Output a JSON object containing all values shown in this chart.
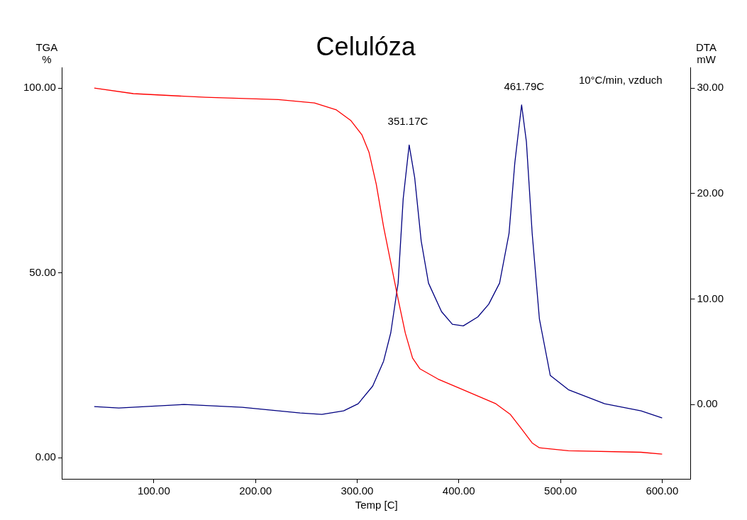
{
  "chart_data": {
    "type": "line",
    "title": "Celulóza",
    "xlabel": "Temp [C]",
    "ylabel": "TGA\n%",
    "y2label": "DTA\nmW",
    "xlim": [
      10,
      628
    ],
    "xticks": [
      {
        "value": 100,
        "label": "100.00"
      },
      {
        "value": 200,
        "label": "200.00"
      },
      {
        "value": 300,
        "label": "300.00"
      },
      {
        "value": 400,
        "label": "400.00"
      },
      {
        "value": 500,
        "label": "500.00"
      },
      {
        "value": 600,
        "label": "600.00"
      }
    ],
    "ylim": [
      -5.7,
      105.6
    ],
    "yticks": [
      {
        "value": 0,
        "label": "0.00"
      },
      {
        "value": 50,
        "label": "50.00"
      },
      {
        "value": 100,
        "label": "100.00"
      }
    ],
    "y2lim": [
      -7.05,
      31.95
    ],
    "y2ticks": [
      {
        "value": 0,
        "label": "0.00"
      },
      {
        "value": 10,
        "label": "10.00"
      },
      {
        "value": 20,
        "label": "20.00"
      },
      {
        "value": 30,
        "label": "30.00"
      }
    ],
    "grid": false,
    "legend": false,
    "marker": "none",
    "line_style": "solid",
    "series": [
      {
        "color": "#ff0000",
        "x": [
          41.4,
          79.9,
          151,
          222.5,
          258,
          279.6,
          293.9,
          304.6,
          311.7,
          318.8,
          326,
          333,
          340,
          347.4,
          354.5,
          361.6,
          379.5,
          400.9,
          436.5,
          450.8,
          461.5,
          472.2,
          479.3,
          507.8,
          579.2,
          600
        ],
        "values": [
          100,
          98.5,
          97.5,
          96.9,
          96,
          94.1,
          91.2,
          87.4,
          82.6,
          74,
          62.5,
          52.9,
          43.3,
          33.7,
          27,
          24.1,
          21.3,
          18.8,
          14.6,
          11.7,
          7.9,
          4,
          2.7,
          1.9,
          1.5,
          1
        ]
      },
      {
        "color": "#000080",
        "axis": "y2",
        "x": [
          41.4,
          65.6,
          129.8,
          186.9,
          243.9,
          265.3,
          286.7,
          301,
          315.3,
          326,
          333.1,
          340.3,
          345.3,
          351.17,
          356.6,
          363,
          370.2,
          383,
          393.7,
          404.4,
          418.7,
          429.4,
          440.1,
          449.4,
          455.1,
          461.79,
          466.5,
          472.2,
          479.3,
          490,
          507.8,
          543.5,
          579.2,
          600
        ],
        "values": [
          -0.2,
          -0.34,
          0,
          -0.27,
          -0.8,
          -0.94,
          -0.6,
          0.07,
          1.74,
          4.1,
          6.8,
          11.5,
          19.5,
          24.6,
          21.5,
          15.5,
          11.5,
          8.8,
          7.6,
          7.45,
          8.3,
          9.5,
          11.5,
          16.2,
          22.9,
          28.4,
          24.9,
          16.2,
          8.1,
          2.75,
          1.4,
          0.07,
          -0.6,
          -1.28
        ]
      }
    ],
    "annotations": [
      "351.17C",
      "461.79C",
      "10°C/min, vzduch"
    ]
  }
}
